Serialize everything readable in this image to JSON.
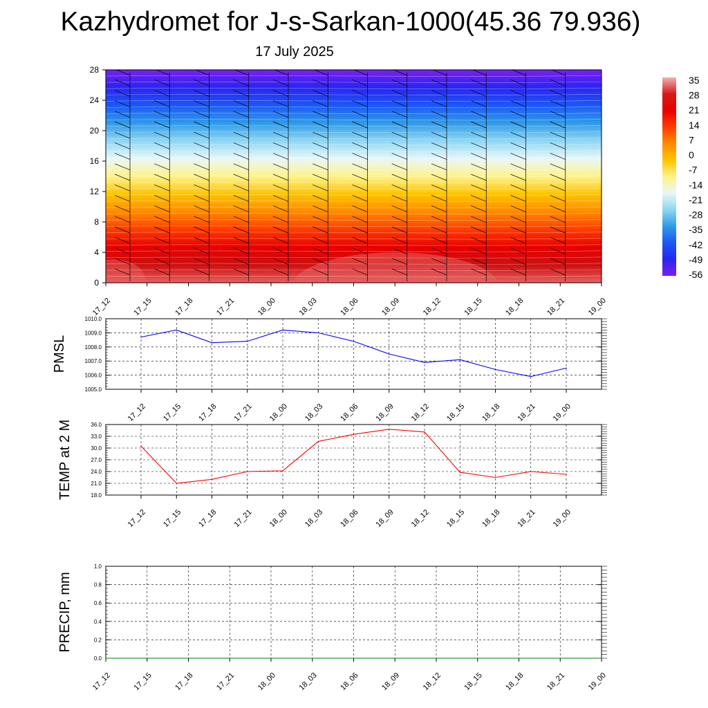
{
  "header": {
    "title": "Kazhydromet for J-s-Sarkan-1000(45.36 79.936)",
    "subtitle": "17 July 2025"
  },
  "chart_data": [
    {
      "type": "heatmap",
      "name": "temperature-height-section",
      "x_categories": [
        "17_12",
        "17_15",
        "17_18",
        "17_21",
        "18_00",
        "18_03",
        "18_06",
        "18_09",
        "18_12",
        "18_15",
        "18_18",
        "18_21",
        "19_00"
      ],
      "y_ticks": [
        0,
        4,
        8,
        12,
        16,
        20,
        24,
        28
      ],
      "ylim": [
        0,
        28
      ],
      "colorbar_labels": [
        "35",
        "28",
        "21",
        "14",
        "7",
        "0",
        "-7",
        "-14",
        "-21",
        "-28",
        "-35",
        "-42",
        "-49",
        "-56"
      ],
      "color_stops": [
        "#7a1ff0",
        "#2a25f2",
        "#1b58f4",
        "#2f9be8",
        "#8fd6f4",
        "#e8f7f7",
        "#fff38a",
        "#ffc400",
        "#ff8a00",
        "#ff3c00",
        "#e80000",
        "#cc1010",
        "#e86060"
      ],
      "grid": false,
      "wind_barbs": true
    },
    {
      "type": "line",
      "name": "pmsl",
      "ylabel": "PMSL",
      "categories": [
        "17_12",
        "17_15",
        "17_18",
        "17_21",
        "18_00",
        "18_03",
        "18_06",
        "18_09",
        "18_12",
        "18_15",
        "18_18",
        "18_21",
        "19_00"
      ],
      "values": [
        1008.7,
        1009.2,
        1008.3,
        1008.4,
        1009.2,
        1009.0,
        1008.4,
        1007.5,
        1006.9,
        1007.1,
        1006.4,
        1005.9,
        1006.5
      ],
      "ylim": [
        1005.0,
        1010.0
      ],
      "y_ticks": [
        "1005.0",
        "1006.0",
        "1007.0",
        "1008.0",
        "1009.0",
        "1010.0"
      ],
      "color": "#0000ff",
      "grid": true
    },
    {
      "type": "line",
      "name": "temp-2m",
      "ylabel": "TEMP at 2 M",
      "categories": [
        "17_12",
        "17_15",
        "17_18",
        "17_21",
        "18_00",
        "18_03",
        "18_06",
        "18_09",
        "18_12",
        "18_15",
        "18_18",
        "18_21",
        "19_00"
      ],
      "values": [
        30.5,
        21.0,
        22.0,
        24.0,
        24.2,
        31.7,
        33.5,
        34.8,
        34.1,
        23.8,
        22.5,
        24.0,
        23.3
      ],
      "ylim": [
        18.0,
        36.0
      ],
      "y_ticks": [
        "18.0",
        "21.0",
        "24.0",
        "27.0",
        "30.0",
        "33.0",
        "36.0"
      ],
      "color": "#ff0000",
      "grid": true
    },
    {
      "type": "line",
      "name": "precip",
      "ylabel": "PRECIP, mm",
      "categories": [
        "17_12",
        "17_15",
        "17_18",
        "17_21",
        "18_00",
        "18_03",
        "18_06",
        "18_09",
        "18_12",
        "18_15",
        "18_18",
        "18_21",
        "19_00"
      ],
      "values": [
        0,
        0,
        0,
        0,
        0,
        0,
        0,
        0,
        0,
        0,
        0,
        0,
        0
      ],
      "ylim": [
        0,
        1.0
      ],
      "y_ticks": [
        "0.0",
        "0.2",
        "0.4",
        "0.6",
        "0.8",
        "1.0"
      ],
      "color": "#008000",
      "grid": true
    }
  ]
}
